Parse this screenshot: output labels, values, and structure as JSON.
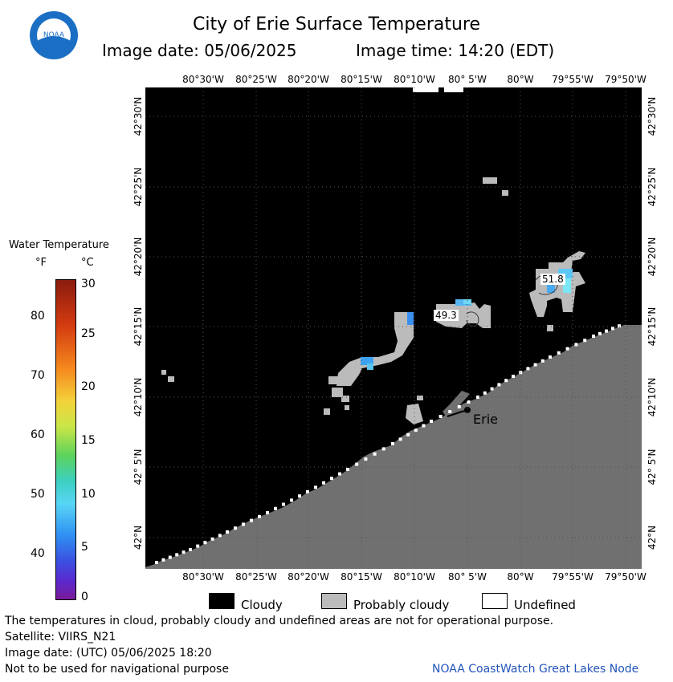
{
  "header": {
    "title": "City of Erie Surface Temperature",
    "date_label": "Image date: 05/06/2025",
    "time_label": "Image time: 14:20 (EDT)",
    "logo_text": "NOAA"
  },
  "axes": {
    "lon_labels": [
      "80°30'W",
      "80°25'W",
      "80°20'W",
      "80°15'W",
      "80°10'W",
      "80° 5'W",
      "80°W",
      "79°55'W",
      "79°50'W"
    ],
    "lat_labels": [
      "42°30'N",
      "42°25'N",
      "42°20'N",
      "42°15'N",
      "42°10'N",
      "42° 5'N",
      "42°N"
    ]
  },
  "colorbar": {
    "title": "Water Temperature",
    "unit_f": "°F",
    "unit_c": "°C",
    "f_ticks": [
      "80",
      "70",
      "60",
      "50",
      "40"
    ],
    "c_ticks": [
      "30",
      "25",
      "20",
      "15",
      "10",
      "5",
      "0"
    ]
  },
  "map": {
    "city_label": "Erie",
    "temperature_labels": [
      "51.8",
      "49.3"
    ]
  },
  "legend": {
    "items": [
      {
        "label": "Cloudy",
        "color": "#000000"
      },
      {
        "label": "Probably cloudy",
        "color": "#bbbbbb"
      },
      {
        "label": "Undefined",
        "color": "#ffffff"
      }
    ]
  },
  "footer": {
    "disclaimer": "The temperatures in cloud, probably cloudy and undefined areas are not for operational purpose.",
    "satellite": "Satellite: VIIRS_N21",
    "utc_date": "Image date: (UTC) 05/06/2025  18:20",
    "navigation": "Not to be used for navigational purpose",
    "credit": "NOAA CoastWatch Great Lakes Node"
  },
  "colors": {
    "land": "#707070",
    "cloud": "#000000",
    "probably_cloudy": "#bbbbbb",
    "credit_text": "#2255bb"
  }
}
